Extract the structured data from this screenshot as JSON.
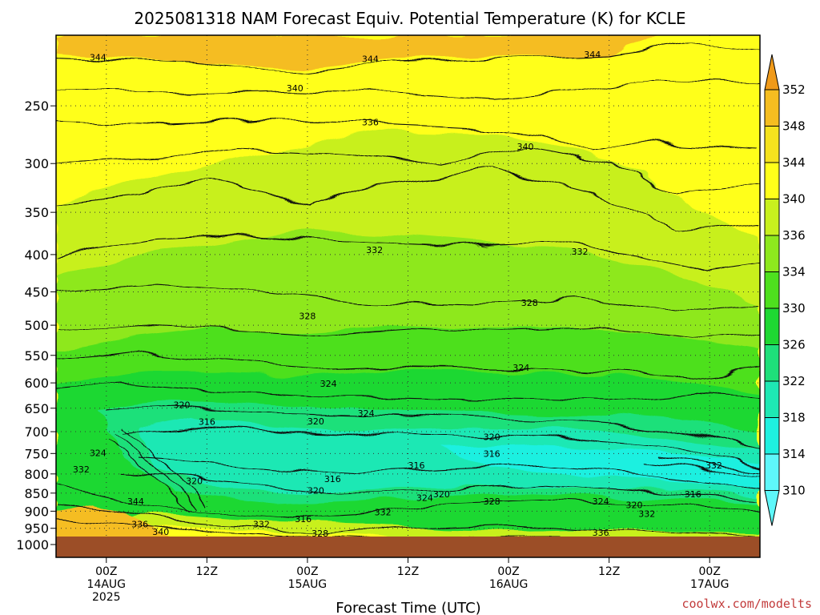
{
  "chart_data": {
    "type": "contour",
    "title": "2025081318 NAM Forecast Equiv. Potential Temperature (K) for KCLE",
    "xlabel": "Forecast Time (UTC)",
    "ylabel": "",
    "y_scale": "log-pressure",
    "y_units": "hPa",
    "ylim": [
      1000,
      200
    ],
    "y_ticks": [
      "250",
      "300",
      "350",
      "400",
      "450",
      "500",
      "550",
      "600",
      "650",
      "700",
      "750",
      "800",
      "850",
      "900",
      "950",
      "1000"
    ],
    "x_range_hours": [
      -6,
      78
    ],
    "x_ticks": [
      {
        "hour": 0,
        "line1": "00Z",
        "line2": "14AUG",
        "line3": "2025"
      },
      {
        "hour": 12,
        "line1": "12Z",
        "line2": "",
        "line3": ""
      },
      {
        "hour": 24,
        "line1": "00Z",
        "line2": "15AUG",
        "line3": ""
      },
      {
        "hour": 36,
        "line1": "12Z",
        "line2": "",
        "line3": ""
      },
      {
        "hour": 48,
        "line1": "00Z",
        "line2": "16AUG",
        "line3": ""
      },
      {
        "hour": 60,
        "line1": "12Z",
        "line2": "",
        "line3": ""
      },
      {
        "hour": 72,
        "line1": "00Z",
        "line2": "17AUG",
        "line3": ""
      }
    ],
    "grid": true,
    "colorbar": {
      "levels": [
        "352",
        "348",
        "344",
        "340",
        "336",
        "334",
        "330",
        "326",
        "322",
        "318",
        "314",
        "310"
      ],
      "colors": [
        "#f09a1a",
        "#f5bd20",
        "#f5e21e",
        "#ffff1a",
        "#c8f01e",
        "#8ee81e",
        "#4ee01e",
        "#1ed832",
        "#1ee07a",
        "#1ee8b4",
        "#1ef0e0",
        "#5ef7fa"
      ]
    },
    "contour_labels": [
      {
        "text": "344",
        "hour": -1,
        "p": 215
      },
      {
        "text": "344",
        "hour": 31.5,
        "p": 216
      },
      {
        "text": "344",
        "hour": 58,
        "p": 213
      },
      {
        "text": "340",
        "hour": 22.5,
        "p": 237
      },
      {
        "text": "336",
        "hour": 31.5,
        "p": 264
      },
      {
        "text": "340",
        "hour": 50,
        "p": 285
      },
      {
        "text": "332",
        "hour": 32,
        "p": 395
      },
      {
        "text": "332",
        "hour": 56.5,
        "p": 397
      },
      {
        "text": "328",
        "hour": 50.5,
        "p": 467
      },
      {
        "text": "328",
        "hour": 24,
        "p": 487
      },
      {
        "text": "324",
        "hour": 49.5,
        "p": 573
      },
      {
        "text": "324",
        "hour": 26.5,
        "p": 603
      },
      {
        "text": "320",
        "hour": 9,
        "p": 645
      },
      {
        "text": "316",
        "hour": 12,
        "p": 680
      },
      {
        "text": "324",
        "hour": 31,
        "p": 662
      },
      {
        "text": "320",
        "hour": 25,
        "p": 679
      },
      {
        "text": "320",
        "hour": 46,
        "p": 713
      },
      {
        "text": "316",
        "hour": 46,
        "p": 752
      },
      {
        "text": "324",
        "hour": -1,
        "p": 750
      },
      {
        "text": "332",
        "hour": -3,
        "p": 790
      },
      {
        "text": "320",
        "hour": 10.5,
        "p": 820
      },
      {
        "text": "316",
        "hour": 27,
        "p": 815
      },
      {
        "text": "316",
        "hour": 37,
        "p": 780
      },
      {
        "text": "332",
        "hour": 72.5,
        "p": 780
      },
      {
        "text": "316",
        "hour": 70,
        "p": 855
      },
      {
        "text": "320",
        "hour": 25,
        "p": 845
      },
      {
        "text": "324",
        "hour": 38,
        "p": 865
      },
      {
        "text": "320",
        "hour": 40,
        "p": 855
      },
      {
        "text": "344",
        "hour": 3.5,
        "p": 875
      },
      {
        "text": "328",
        "hour": 46,
        "p": 875
      },
      {
        "text": "324",
        "hour": 59,
        "p": 875
      },
      {
        "text": "320",
        "hour": 63,
        "p": 885
      },
      {
        "text": "332",
        "hour": 33,
        "p": 905
      },
      {
        "text": "332",
        "hour": 64.5,
        "p": 910
      },
      {
        "text": "336",
        "hour": 4,
        "p": 940
      },
      {
        "text": "332",
        "hour": 18.5,
        "p": 940
      },
      {
        "text": "316",
        "hour": 23.5,
        "p": 925
      },
      {
        "text": "340",
        "hour": 6.5,
        "p": 963
      },
      {
        "text": "328",
        "hour": 25.5,
        "p": 968
      },
      {
        "text": "336",
        "hour": 59,
        "p": 965
      }
    ]
  },
  "credit": "coolwx.com/modelts"
}
